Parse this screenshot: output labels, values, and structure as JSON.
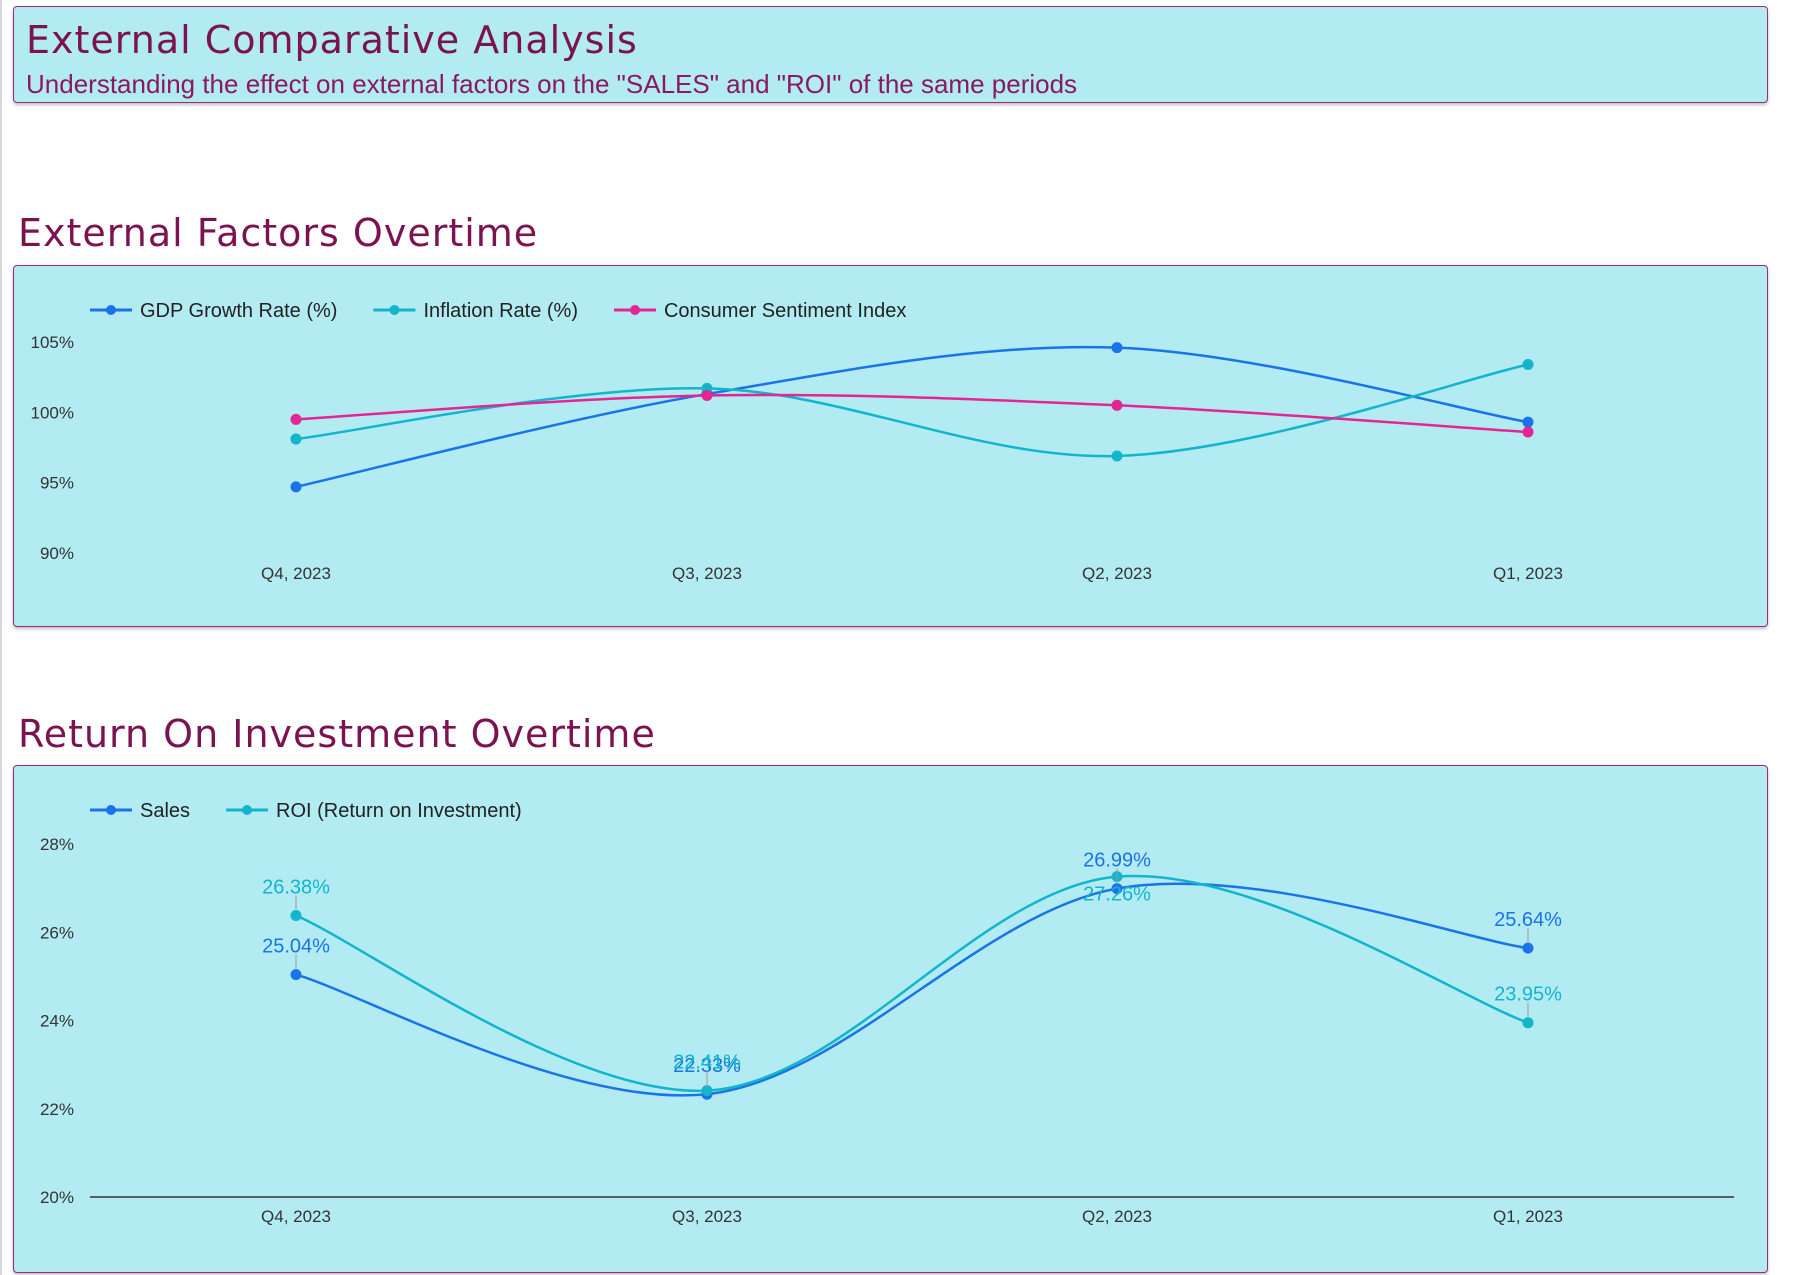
{
  "header": {
    "title": "External Comparative Analysis",
    "subtitle": "Understanding the effect on external factors on the \"SALES\" and \"ROI\" of the same periods"
  },
  "sections": {
    "external_title": "External Factors Overtime",
    "roi_title": "Return On Investment Overtime"
  },
  "chart_data": [
    {
      "type": "line",
      "categories": [
        "Q4, 2023",
        "Q3, 2023",
        "Q2, 2023",
        "Q1, 2023"
      ],
      "y_ticks": [
        "90%",
        "95%",
        "100%",
        "105%"
      ],
      "ylim": [
        90,
        105
      ],
      "legend": "top-left",
      "grid": false,
      "series": [
        {
          "name": "GDP Growth Rate (%)",
          "color": "#1a73e8",
          "values": [
            94.7,
            101.3,
            104.6,
            99.3
          ]
        },
        {
          "name": "Inflation Rate (%)",
          "color": "#12b5cb",
          "values": [
            98.1,
            101.7,
            96.9,
            103.4
          ]
        },
        {
          "name": "Consumer Sentiment Index",
          "color": "#e52592",
          "values": [
            99.5,
            101.2,
            100.5,
            98.6
          ]
        }
      ]
    },
    {
      "type": "line",
      "categories": [
        "Q4, 2023",
        "Q3, 2023",
        "Q2, 2023",
        "Q1, 2023"
      ],
      "y_ticks": [
        "20%",
        "22%",
        "24%",
        "26%",
        "28%"
      ],
      "ylim": [
        20,
        28
      ],
      "legend": "top-left",
      "grid": false,
      "series": [
        {
          "name": "Sales",
          "color": "#1a73e8",
          "values": [
            25.04,
            22.33,
            26.99,
            25.64
          ],
          "labels": [
            "25.04%",
            "22.33%",
            "26.99%",
            "25.64%"
          ]
        },
        {
          "name": "ROI (Return on Investment)",
          "color": "#12b5cb",
          "values": [
            26.38,
            22.41,
            27.26,
            23.95
          ],
          "labels": [
            "26.38%",
            "22.41%",
            "27.26%",
            "23.95%"
          ]
        }
      ]
    }
  ]
}
